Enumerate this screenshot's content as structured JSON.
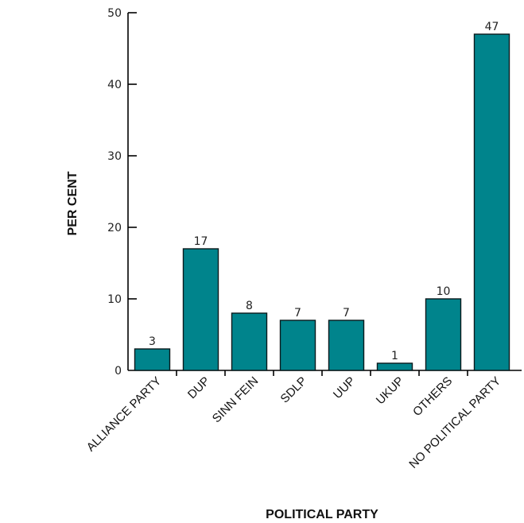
{
  "chart_data": {
    "type": "bar",
    "categories": [
      "ALLIANCE PARTY",
      "DUP",
      "SINN FEIN",
      "SDLP",
      "UUP",
      "UKUP",
      "OTHERS",
      "NO POLITICAL PARTY"
    ],
    "values": [
      3,
      17,
      8,
      7,
      7,
      1,
      10,
      47
    ],
    "data_labels": [
      "3",
      "17",
      "8",
      "7",
      "7",
      "1",
      "10",
      "47"
    ],
    "title": "",
    "xlabel": "POLITICAL PARTY",
    "ylabel": "PER CENT",
    "ylim": [
      0,
      50
    ],
    "yticks": [
      0,
      10,
      20,
      30,
      40,
      50
    ],
    "ytick_labels": [
      "0",
      "10",
      "20",
      "30",
      "40",
      "50"
    ],
    "grid": false,
    "legend": "none",
    "bar_color": "#00848c"
  }
}
